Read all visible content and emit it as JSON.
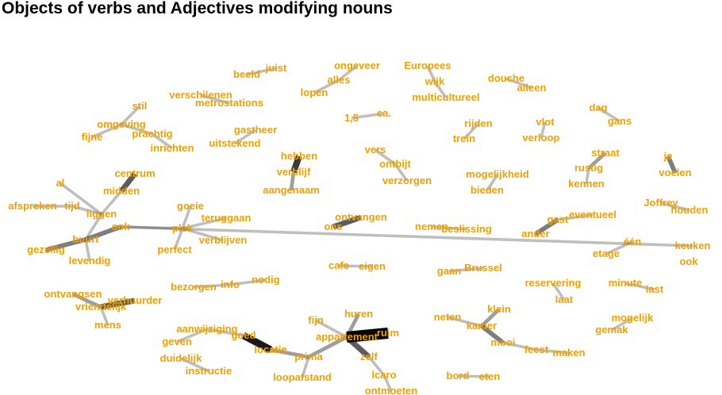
{
  "title": "Objects of verbs and Adjectives modifying nouns",
  "colors": {
    "label": "#f0a000",
    "edge": "#000000"
  },
  "words": [
    "juist",
    "beeld",
    "ongeveer",
    "alles",
    "lopen",
    "Europees",
    "wijk",
    "multicultureel",
    "douche",
    "alleen",
    "verschilenen",
    "metrostations",
    "stil",
    "omgeving",
    "fijne",
    "prachtig",
    "inrichten",
    "1,5",
    "ca.",
    "rijden",
    "trein",
    "vlot",
    "verloop",
    "dag",
    "gans",
    "gastheer",
    "uitstekend",
    "hebben",
    "verblijf",
    "aangenaam",
    "vers",
    "ontbijt",
    "verzorgen",
    "straat",
    "rustig",
    "kennen",
    "je",
    "voelen",
    "centrum",
    "midden",
    "al",
    "afspreken",
    "tijd",
    "liggen",
    "buurt",
    "ook",
    "gezellig",
    "levendig",
    "goeie",
    "teruggaan",
    "plek",
    "verblijven",
    "perfect",
    "mogelijkheid",
    "bieden",
    "ontvangen",
    "ons",
    "nemen",
    "beslissing",
    "gast",
    "ander",
    "eventueel",
    "Joffrey",
    "houden",
    "één",
    "etage",
    "keuken",
    "cafe",
    "eigen",
    "gaan",
    "Brussel",
    "bezorgen",
    "info",
    "nodig",
    "ontvangsen",
    "verhuurder",
    "vriendelijk",
    "mens",
    "reservering",
    "laat",
    "minute",
    "last",
    "klein",
    "neten",
    "kamer",
    "mooi",
    "feest",
    "maken",
    "mogelijk",
    "gemak",
    "huren",
    "fijn",
    "aanwijziging",
    "goed",
    "appartement",
    "ruim",
    "locatie",
    "geven",
    "prima",
    "duidelijk",
    "zelf",
    "instructie",
    "loopafstand",
    "lcaro",
    "bord",
    "eten",
    "ontmoeten"
  ],
  "network_edges": [
    {
      "a": "juist",
      "b": "beeld",
      "weight": 1
    },
    {
      "a": "ongeveer",
      "b": "alles",
      "weight": 1
    },
    {
      "a": "alles",
      "b": "lopen",
      "weight": 1
    },
    {
      "a": "Europees",
      "b": "wijk",
      "weight": 1
    },
    {
      "a": "wijk",
      "b": "multicultureel",
      "weight": 1
    },
    {
      "a": "douche",
      "b": "alleen",
      "weight": 1
    },
    {
      "a": "verschilenen",
      "b": "metrostations",
      "weight": 1
    },
    {
      "a": "stil",
      "b": "omgeving",
      "weight": 1
    },
    {
      "a": "omgeving",
      "b": "fijne",
      "weight": 1
    },
    {
      "a": "omgeving",
      "b": "prachtig",
      "weight": 1
    },
    {
      "a": "prachtig",
      "b": "inrichten",
      "weight": 1
    },
    {
      "a": "1,5",
      "b": "ca.",
      "weight": 1
    },
    {
      "a": "rijden",
      "b": "trein",
      "weight": 1
    },
    {
      "a": "vlot",
      "b": "verloop",
      "weight": 1
    },
    {
      "a": "dag",
      "b": "gans",
      "weight": 1
    },
    {
      "a": "gastheer",
      "b": "uitstekend",
      "weight": 1
    },
    {
      "a": "hebben",
      "b": "verblijf",
      "weight": 5
    },
    {
      "a": "verblijf",
      "b": "aangenaam",
      "weight": 2
    },
    {
      "a": "vers",
      "b": "ontbijt",
      "weight": 1
    },
    {
      "a": "ontbijt",
      "b": "verzorgen",
      "weight": 1
    },
    {
      "a": "straat",
      "b": "rustig",
      "weight": 2
    },
    {
      "a": "rustig",
      "b": "kennen",
      "weight": 1
    },
    {
      "a": "je",
      "b": "voelen",
      "weight": 3
    },
    {
      "a": "centrum",
      "b": "midden",
      "weight": 4
    },
    {
      "a": "al",
      "b": "liggen",
      "weight": 1
    },
    {
      "a": "afspreken",
      "b": "tijd",
      "weight": 1
    },
    {
      "a": "tijd",
      "b": "liggen",
      "weight": 1
    },
    {
      "a": "midden",
      "b": "liggen",
      "weight": 1
    },
    {
      "a": "liggen",
      "b": "buurt",
      "weight": 1
    },
    {
      "a": "buurt",
      "b": "ook",
      "weight": 3
    },
    {
      "a": "buurt",
      "b": "gezellig",
      "weight": 3
    },
    {
      "a": "buurt",
      "b": "levendig",
      "weight": 1
    },
    {
      "a": "ook",
      "b": "plek",
      "weight": 1
    },
    {
      "a": "goeie",
      "b": "plek",
      "weight": 1
    },
    {
      "a": "teruggaan",
      "b": "plek",
      "weight": 1
    },
    {
      "a": "plek",
      "b": "verblijven",
      "weight": 1
    },
    {
      "a": "plek",
      "b": "perfect",
      "weight": 1
    },
    {
      "a": "mogelijkheid",
      "b": "bieden",
      "weight": 1
    },
    {
      "a": "ontvangen",
      "b": "ons",
      "weight": 4
    },
    {
      "a": "nemen",
      "b": "beslissing",
      "weight": 1
    },
    {
      "a": "gast",
      "b": "ander",
      "weight": 3
    },
    {
      "a": "gast",
      "b": "eventueel",
      "weight": 1
    },
    {
      "a": "Joffrey",
      "b": "houden",
      "weight": 1
    },
    {
      "a": "één",
      "b": "etage",
      "weight": 1
    },
    {
      "a": "keuken",
      "b": "ook",
      "weight": 1
    },
    {
      "a": "cafe",
      "b": "eigen",
      "weight": 1
    },
    {
      "a": "gaan",
      "b": "Brussel",
      "weight": 1
    },
    {
      "a": "bezorgen",
      "b": "info",
      "weight": 1
    },
    {
      "a": "info",
      "b": "nodig",
      "weight": 1
    },
    {
      "a": "ontvangsen",
      "b": "vriendelijk",
      "weight": 2
    },
    {
      "a": "verhuurder",
      "b": "vriendelijk",
      "weight": 4
    },
    {
      "a": "vriendelijk",
      "b": "mens",
      "weight": 1
    },
    {
      "a": "reservering",
      "b": "laat",
      "weight": 1
    },
    {
      "a": "minute",
      "b": "last",
      "weight": 1
    },
    {
      "a": "klein",
      "b": "kamer",
      "weight": 2
    },
    {
      "a": "neten",
      "b": "kamer",
      "weight": 1
    },
    {
      "a": "kamer",
      "b": "mooi",
      "weight": 3
    },
    {
      "a": "mooi",
      "b": "feest",
      "weight": 1
    },
    {
      "a": "feest",
      "b": "maken",
      "weight": 1
    },
    {
      "a": "mogelijk",
      "b": "gemak",
      "weight": 1
    },
    {
      "a": "huren",
      "b": "appartement",
      "weight": 2
    },
    {
      "a": "fijn",
      "b": "appartement",
      "weight": 1
    },
    {
      "a": "appartement",
      "b": "ruim",
      "weight": 12
    },
    {
      "a": "appartement",
      "b": "zelf",
      "weight": 4
    },
    {
      "a": "appartement",
      "b": "prima",
      "weight": 2
    },
    {
      "a": "zelf",
      "b": "lcaro",
      "weight": 1
    },
    {
      "a": "lcaro",
      "b": "ontmoeten",
      "weight": 1
    },
    {
      "a": "aanwijziging",
      "b": "goed",
      "weight": 1
    },
    {
      "a": "goed",
      "b": "locatie",
      "weight": 6
    },
    {
      "a": "geven",
      "b": "aanwijziging",
      "weight": 1
    },
    {
      "a": "locatie",
      "b": "prima",
      "weight": 2
    },
    {
      "a": "prima",
      "b": "loopafstand",
      "weight": 1
    },
    {
      "a": "duidelijk",
      "b": "instructie",
      "weight": 1
    },
    {
      "a": "bord",
      "b": "eten",
      "weight": 1
    }
  ]
}
